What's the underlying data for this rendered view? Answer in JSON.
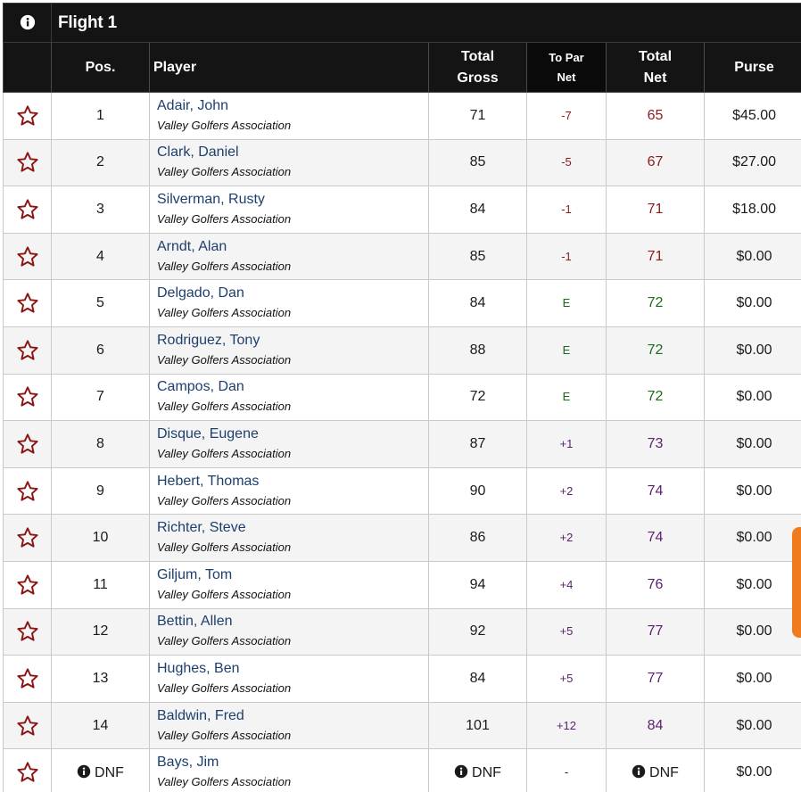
{
  "flight_title": "Flight 1",
  "columns": {
    "pos": "Pos.",
    "player": "Player",
    "gross_line1": "Total",
    "gross_line2": "Gross",
    "par_line1": "To Par",
    "par_line2": "Net",
    "net_line1": "Total",
    "net_line2": "Net",
    "purse": "Purse"
  },
  "status_colors": {
    "under": "#8b1a1a",
    "even": "#1a6b1a",
    "over": "#5a1f6e"
  },
  "rows": [
    {
      "pos": "1",
      "name": "Adair, John",
      "club": "Valley Golfers Association",
      "gross": "71",
      "to_par": "-7",
      "net": "65",
      "purse": "$45.00",
      "status": "under"
    },
    {
      "pos": "2",
      "name": "Clark, Daniel",
      "club": "Valley Golfers Association",
      "gross": "85",
      "to_par": "-5",
      "net": "67",
      "purse": "$27.00",
      "status": "under"
    },
    {
      "pos": "3",
      "name": "Silverman, Rusty",
      "club": "Valley Golfers Association",
      "gross": "84",
      "to_par": "-1",
      "net": "71",
      "purse": "$18.00",
      "status": "under"
    },
    {
      "pos": "4",
      "name": "Arndt, Alan",
      "club": "Valley Golfers Association",
      "gross": "85",
      "to_par": "-1",
      "net": "71",
      "purse": "$0.00",
      "status": "under"
    },
    {
      "pos": "5",
      "name": "Delgado, Dan",
      "club": "Valley Golfers Association",
      "gross": "84",
      "to_par": "E",
      "net": "72",
      "purse": "$0.00",
      "status": "even"
    },
    {
      "pos": "6",
      "name": "Rodriguez, Tony",
      "club": "Valley Golfers Association",
      "gross": "88",
      "to_par": "E",
      "net": "72",
      "purse": "$0.00",
      "status": "even"
    },
    {
      "pos": "7",
      "name": "Campos, Dan",
      "club": "Valley Golfers Association",
      "gross": "72",
      "to_par": "E",
      "net": "72",
      "purse": "$0.00",
      "status": "even"
    },
    {
      "pos": "8",
      "name": "Disque, Eugene",
      "club": "Valley Golfers Association",
      "gross": "87",
      "to_par": "+1",
      "net": "73",
      "purse": "$0.00",
      "status": "over"
    },
    {
      "pos": "9",
      "name": "Hebert, Thomas",
      "club": "Valley Golfers Association",
      "gross": "90",
      "to_par": "+2",
      "net": "74",
      "purse": "$0.00",
      "status": "over"
    },
    {
      "pos": "10",
      "name": "Richter, Steve",
      "club": "Valley Golfers Association",
      "gross": "86",
      "to_par": "+2",
      "net": "74",
      "purse": "$0.00",
      "status": "over"
    },
    {
      "pos": "11",
      "name": "Giljum, Tom",
      "club": "Valley Golfers Association",
      "gross": "94",
      "to_par": "+4",
      "net": "76",
      "purse": "$0.00",
      "status": "over"
    },
    {
      "pos": "12",
      "name": "Bettin, Allen",
      "club": "Valley Golfers Association",
      "gross": "92",
      "to_par": "+5",
      "net": "77",
      "purse": "$0.00",
      "status": "over"
    },
    {
      "pos": "13",
      "name": "Hughes, Ben",
      "club": "Valley Golfers Association",
      "gross": "84",
      "to_par": "+5",
      "net": "77",
      "purse": "$0.00",
      "status": "over"
    },
    {
      "pos": "14",
      "name": "Baldwin, Fred",
      "club": "Valley Golfers Association",
      "gross": "101",
      "to_par": "+12",
      "net": "84",
      "purse": "$0.00",
      "status": "over"
    },
    {
      "pos": "DNF",
      "name": "Bays, Jim",
      "club": "Valley Golfers Association",
      "gross": "DNF",
      "to_par": "-",
      "net": "DNF",
      "purse": "$0.00",
      "status": "none",
      "dnf": true
    }
  ]
}
